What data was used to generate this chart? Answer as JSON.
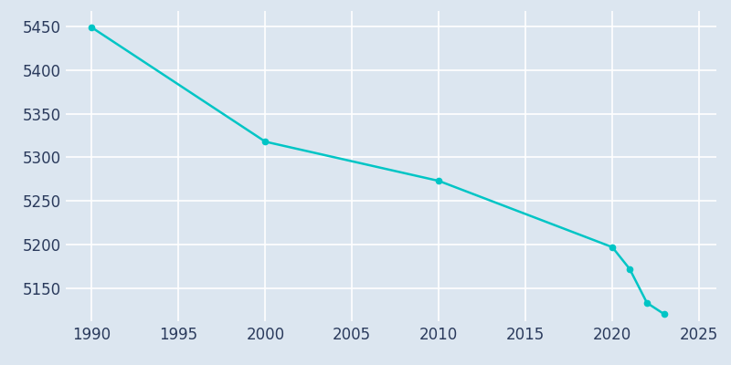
{
  "years": [
    1990,
    2000,
    2010,
    2020,
    2021,
    2022,
    2023
  ],
  "population": [
    5449,
    5318,
    5273,
    5197,
    5172,
    5133,
    5120
  ],
  "line_color": "#00C5C5",
  "marker_color": "#00C5C5",
  "fig_bg_color": "#dce6f0",
  "plot_bg_color": "#dce6f0",
  "grid_color": "#ffffff",
  "xlabel": "",
  "ylabel": "",
  "xlim": [
    1988.5,
    2026
  ],
  "ylim": [
    5112,
    5468
  ],
  "xtick_values": [
    1990,
    1995,
    2000,
    2005,
    2010,
    2015,
    2020,
    2025
  ],
  "ytick_values": [
    5150,
    5200,
    5250,
    5300,
    5350,
    5400,
    5450
  ],
  "tick_fontsize": 12,
  "line_width": 1.8,
  "marker_size": 4.5
}
